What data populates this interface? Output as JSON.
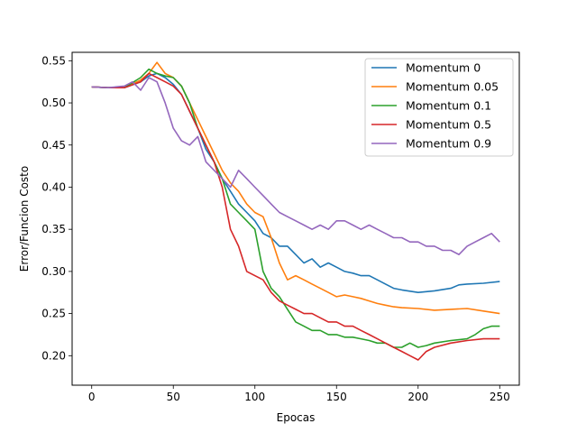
{
  "chart_data": {
    "type": "line",
    "title": "",
    "xlabel": "Epocas",
    "ylabel": "Error/Funcion Costo",
    "xlim": [
      -12,
      262
    ],
    "ylim": [
      0.165,
      0.56
    ],
    "xticks": [
      0,
      50,
      100,
      150,
      200,
      250
    ],
    "yticks": [
      0.2,
      0.25,
      0.3,
      0.35,
      0.4,
      0.45,
      0.5,
      0.55
    ],
    "grid": false,
    "legend_position": "top-right",
    "series": [
      {
        "name": "Momentum 0",
        "color": "#1f77b4",
        "points": [
          [
            0,
            0.519
          ],
          [
            10,
            0.518
          ],
          [
            20,
            0.518
          ],
          [
            30,
            0.525
          ],
          [
            35,
            0.532
          ],
          [
            40,
            0.535
          ],
          [
            45,
            0.53
          ],
          [
            50,
            0.522
          ],
          [
            55,
            0.51
          ],
          [
            60,
            0.49
          ],
          [
            65,
            0.47
          ],
          [
            70,
            0.445
          ],
          [
            75,
            0.43
          ],
          [
            80,
            0.41
          ],
          [
            85,
            0.395
          ],
          [
            90,
            0.38
          ],
          [
            95,
            0.37
          ],
          [
            100,
            0.36
          ],
          [
            105,
            0.345
          ],
          [
            110,
            0.34
          ],
          [
            115,
            0.33
          ],
          [
            120,
            0.33
          ],
          [
            125,
            0.32
          ],
          [
            130,
            0.31
          ],
          [
            135,
            0.315
          ],
          [
            140,
            0.305
          ],
          [
            145,
            0.31
          ],
          [
            150,
            0.305
          ],
          [
            155,
            0.3
          ],
          [
            160,
            0.298
          ],
          [
            165,
            0.295
          ],
          [
            170,
            0.295
          ],
          [
            175,
            0.29
          ],
          [
            180,
            0.285
          ],
          [
            185,
            0.28
          ],
          [
            190,
            0.278
          ],
          [
            200,
            0.275
          ],
          [
            210,
            0.277
          ],
          [
            220,
            0.28
          ],
          [
            225,
            0.284
          ],
          [
            230,
            0.285
          ],
          [
            240,
            0.286
          ],
          [
            250,
            0.288
          ]
        ]
      },
      {
        "name": "Momentum 0.05",
        "color": "#ff7f0e",
        "points": [
          [
            0,
            0.519
          ],
          [
            10,
            0.518
          ],
          [
            20,
            0.518
          ],
          [
            30,
            0.527
          ],
          [
            35,
            0.535
          ],
          [
            40,
            0.548
          ],
          [
            45,
            0.535
          ],
          [
            50,
            0.53
          ],
          [
            55,
            0.52
          ],
          [
            60,
            0.5
          ],
          [
            65,
            0.48
          ],
          [
            70,
            0.46
          ],
          [
            75,
            0.44
          ],
          [
            80,
            0.42
          ],
          [
            85,
            0.405
          ],
          [
            90,
            0.395
          ],
          [
            95,
            0.38
          ],
          [
            100,
            0.37
          ],
          [
            105,
            0.365
          ],
          [
            110,
            0.34
          ],
          [
            115,
            0.31
          ],
          [
            120,
            0.29
          ],
          [
            125,
            0.295
          ],
          [
            130,
            0.29
          ],
          [
            135,
            0.285
          ],
          [
            140,
            0.28
          ],
          [
            145,
            0.275
          ],
          [
            150,
            0.27
          ],
          [
            155,
            0.272
          ],
          [
            160,
            0.27
          ],
          [
            165,
            0.268
          ],
          [
            170,
            0.265
          ],
          [
            175,
            0.262
          ],
          [
            180,
            0.26
          ],
          [
            185,
            0.258
          ],
          [
            190,
            0.257
          ],
          [
            200,
            0.256
          ],
          [
            210,
            0.254
          ],
          [
            220,
            0.255
          ],
          [
            230,
            0.256
          ],
          [
            240,
            0.253
          ],
          [
            250,
            0.25
          ]
        ]
      },
      {
        "name": "Momentum 0.1",
        "color": "#2ca02c",
        "points": [
          [
            0,
            0.519
          ],
          [
            10,
            0.518
          ],
          [
            20,
            0.518
          ],
          [
            30,
            0.53
          ],
          [
            35,
            0.54
          ],
          [
            40,
            0.535
          ],
          [
            45,
            0.532
          ],
          [
            50,
            0.53
          ],
          [
            55,
            0.52
          ],
          [
            60,
            0.5
          ],
          [
            65,
            0.47
          ],
          [
            70,
            0.45
          ],
          [
            75,
            0.43
          ],
          [
            80,
            0.41
          ],
          [
            85,
            0.38
          ],
          [
            90,
            0.37
          ],
          [
            95,
            0.36
          ],
          [
            100,
            0.35
          ],
          [
            105,
            0.3
          ],
          [
            110,
            0.28
          ],
          [
            115,
            0.27
          ],
          [
            120,
            0.255
          ],
          [
            125,
            0.24
          ],
          [
            130,
            0.235
          ],
          [
            135,
            0.23
          ],
          [
            140,
            0.23
          ],
          [
            145,
            0.225
          ],
          [
            150,
            0.225
          ],
          [
            155,
            0.222
          ],
          [
            160,
            0.222
          ],
          [
            165,
            0.22
          ],
          [
            170,
            0.218
          ],
          [
            175,
            0.215
          ],
          [
            180,
            0.215
          ],
          [
            185,
            0.21
          ],
          [
            190,
            0.21
          ],
          [
            195,
            0.215
          ],
          [
            200,
            0.21
          ],
          [
            205,
            0.212
          ],
          [
            210,
            0.215
          ],
          [
            220,
            0.218
          ],
          [
            230,
            0.22
          ],
          [
            235,
            0.225
          ],
          [
            240,
            0.232
          ],
          [
            245,
            0.235
          ],
          [
            250,
            0.235
          ]
        ]
      },
      {
        "name": "Momentum 0.5",
        "color": "#d62728",
        "points": [
          [
            0,
            0.519
          ],
          [
            10,
            0.518
          ],
          [
            20,
            0.518
          ],
          [
            30,
            0.525
          ],
          [
            35,
            0.535
          ],
          [
            40,
            0.53
          ],
          [
            45,
            0.525
          ],
          [
            50,
            0.52
          ],
          [
            55,
            0.51
          ],
          [
            60,
            0.49
          ],
          [
            65,
            0.47
          ],
          [
            70,
            0.45
          ],
          [
            75,
            0.43
          ],
          [
            80,
            0.4
          ],
          [
            85,
            0.35
          ],
          [
            90,
            0.33
          ],
          [
            95,
            0.3
          ],
          [
            100,
            0.295
          ],
          [
            105,
            0.29
          ],
          [
            110,
            0.275
          ],
          [
            115,
            0.265
          ],
          [
            120,
            0.26
          ],
          [
            125,
            0.255
          ],
          [
            130,
            0.25
          ],
          [
            135,
            0.25
          ],
          [
            140,
            0.245
          ],
          [
            145,
            0.24
          ],
          [
            150,
            0.24
          ],
          [
            155,
            0.235
          ],
          [
            160,
            0.235
          ],
          [
            165,
            0.23
          ],
          [
            170,
            0.225
          ],
          [
            175,
            0.22
          ],
          [
            180,
            0.215
          ],
          [
            185,
            0.21
          ],
          [
            190,
            0.205
          ],
          [
            195,
            0.2
          ],
          [
            200,
            0.195
          ],
          [
            205,
            0.205
          ],
          [
            210,
            0.21
          ],
          [
            220,
            0.215
          ],
          [
            230,
            0.218
          ],
          [
            240,
            0.22
          ],
          [
            250,
            0.22
          ]
        ]
      },
      {
        "name": "Momentum 0.9",
        "color": "#9467bd",
        "points": [
          [
            0,
            0.519
          ],
          [
            10,
            0.518
          ],
          [
            20,
            0.52
          ],
          [
            25,
            0.525
          ],
          [
            30,
            0.515
          ],
          [
            35,
            0.53
          ],
          [
            40,
            0.525
          ],
          [
            45,
            0.5
          ],
          [
            50,
            0.47
          ],
          [
            55,
            0.455
          ],
          [
            60,
            0.45
          ],
          [
            65,
            0.46
          ],
          [
            70,
            0.43
          ],
          [
            75,
            0.42
          ],
          [
            80,
            0.41
          ],
          [
            85,
            0.4
          ],
          [
            90,
            0.42
          ],
          [
            95,
            0.41
          ],
          [
            100,
            0.4
          ],
          [
            105,
            0.39
          ],
          [
            110,
            0.38
          ],
          [
            115,
            0.37
          ],
          [
            120,
            0.365
          ],
          [
            125,
            0.36
          ],
          [
            130,
            0.355
          ],
          [
            135,
            0.35
          ],
          [
            140,
            0.355
          ],
          [
            145,
            0.35
          ],
          [
            150,
            0.36
          ],
          [
            155,
            0.36
          ],
          [
            160,
            0.355
          ],
          [
            165,
            0.35
          ],
          [
            170,
            0.355
          ],
          [
            175,
            0.35
          ],
          [
            180,
            0.345
          ],
          [
            185,
            0.34
          ],
          [
            190,
            0.34
          ],
          [
            195,
            0.335
          ],
          [
            200,
            0.335
          ],
          [
            205,
            0.33
          ],
          [
            210,
            0.33
          ],
          [
            215,
            0.325
          ],
          [
            220,
            0.325
          ],
          [
            225,
            0.32
          ],
          [
            230,
            0.33
          ],
          [
            235,
            0.335
          ],
          [
            240,
            0.34
          ],
          [
            245,
            0.345
          ],
          [
            250,
            0.335
          ]
        ]
      }
    ]
  }
}
